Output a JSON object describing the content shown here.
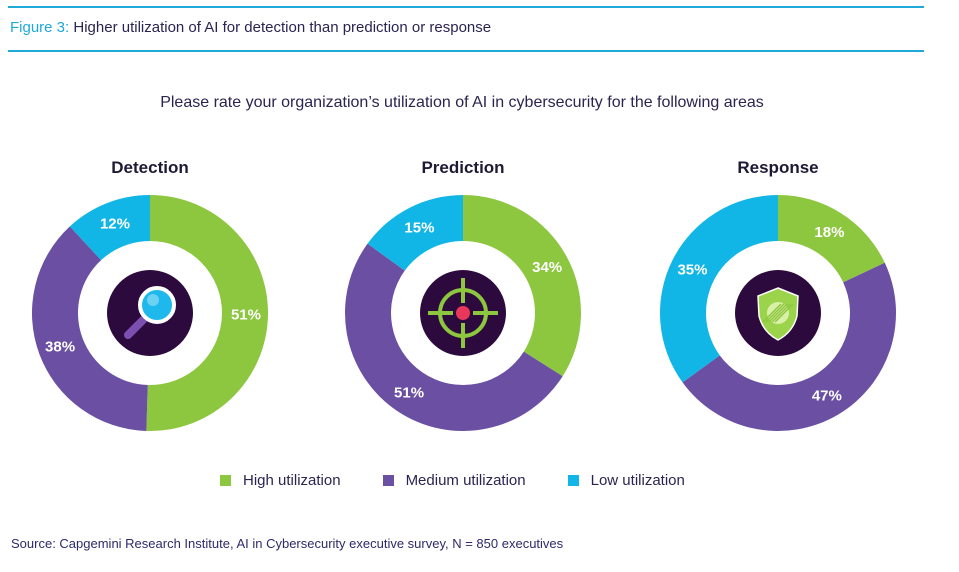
{
  "figure": {
    "label": "Figure 3:",
    "title": "Higher utilization of AI for detection than prediction or response"
  },
  "question": "Please rate your organization’s utilization of AI in cybersecurity for the following areas",
  "colors": {
    "high": "#8dc63f",
    "medium": "#6a4fa3",
    "low": "#12b6e6",
    "center": "#2d0a3d",
    "rule": "#1fa9d8"
  },
  "icons": [
    "magnifier-icon",
    "target-crosshair-icon",
    "shield-icon"
  ],
  "chart_data": [
    {
      "type": "pie",
      "title": "Detection",
      "categories": [
        "High utilization",
        "Medium utilization",
        "Low utilization"
      ],
      "values": [
        51,
        38,
        12
      ],
      "labels": [
        "51%",
        "38%",
        "12%"
      ]
    },
    {
      "type": "pie",
      "title": "Prediction",
      "categories": [
        "High utilization",
        "Medium utilization",
        "Low utilization"
      ],
      "values": [
        34,
        51,
        15
      ],
      "labels": [
        "34%",
        "51%",
        "15%"
      ]
    },
    {
      "type": "pie",
      "title": "Response",
      "categories": [
        "High utilization",
        "Medium utilization",
        "Low utilization"
      ],
      "values": [
        18,
        47,
        35
      ],
      "labels": [
        "18%",
        "47%",
        "35%"
      ]
    }
  ],
  "legend": [
    "High utilization",
    "Medium utilization",
    "Low utilization"
  ],
  "source": "Source: Capgemini Research Institute, AI in Cybersecurity executive survey, N = 850 executives"
}
